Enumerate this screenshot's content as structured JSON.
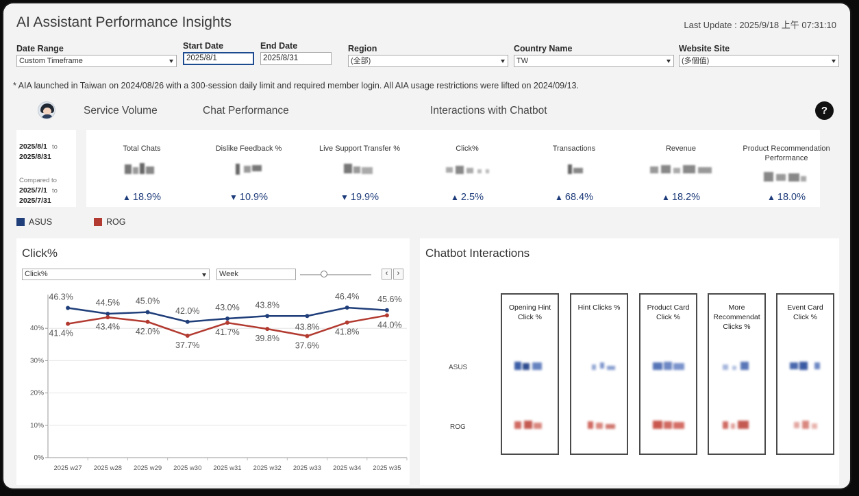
{
  "header": {
    "title": "AI Assistant Performance Insights",
    "last_update": "Last Update : 2025/9/18 上午 07:31:10"
  },
  "filters": {
    "date_range": {
      "label": "Date Range",
      "value": "Custom Timeframe"
    },
    "start_date": {
      "label": "Start Date",
      "value": "2025/8/1"
    },
    "end_date": {
      "label": "End Date",
      "value": "2025/8/31"
    },
    "region": {
      "label": "Region",
      "value": "(全部)"
    },
    "country": {
      "label": "Country Name",
      "value": "TW"
    },
    "website": {
      "label": "Website Site",
      "value": "(多個值)"
    }
  },
  "note": "* AIA launched in Taiwan on 2024/08/26 with a 300-session daily limit and required member login. All AIA usage restrictions were lifted on 2024/09/13.",
  "sections": {
    "service_volume": "Service Volume",
    "chat_performance": "Chat Performance",
    "interactions": "Interactions with Chatbot",
    "help": "?"
  },
  "period": {
    "current_start": "2025/8/1",
    "to1": "to",
    "current_end": "2025/8/31",
    "compared": "Compared to",
    "prev_start": "2025/7/1",
    "to2": "to",
    "prev_end": "2025/7/31"
  },
  "kpis": [
    {
      "name": "Total Chats",
      "arrow": "▲",
      "value": "18.9%"
    },
    {
      "name": "Dislike Feedback %",
      "arrow": "▼",
      "value": "10.9%"
    },
    {
      "name": "Live Support Transfer %",
      "arrow": "▼",
      "value": "19.9%"
    },
    {
      "name": "Click%",
      "arrow": "▲",
      "value": "2.5%"
    },
    {
      "name": "Transactions",
      "arrow": "▲",
      "value": "68.4%"
    },
    {
      "name": "Revenue",
      "arrow": "▲",
      "value": "18.2%"
    },
    {
      "name": "Product Recommendation Performance",
      "arrow": "▲",
      "value": "18.0%"
    }
  ],
  "legend": {
    "asus": {
      "label": "ASUS",
      "color": "#1f3e7a"
    },
    "rog": {
      "label": "ROG",
      "color": "#b23a30"
    }
  },
  "click_panel": {
    "title": "Click%",
    "metric_select": "Click%",
    "granularity": "Week",
    "prev": "‹",
    "next": "›"
  },
  "chart_data": {
    "type": "line",
    "categories": [
      "2025 w27",
      "2025 w28",
      "2025 w29",
      "2025 w30",
      "2025 w31",
      "2025 w32",
      "2025 w33",
      "2025 w34",
      "2025 w35"
    ],
    "series": [
      {
        "name": "ASUS",
        "color": "#1f3e7a",
        "values": [
          46.3,
          44.5,
          45.0,
          42.0,
          43.0,
          43.8,
          43.8,
          46.4,
          45.6
        ],
        "labels": [
          "46.3%",
          "44.5%",
          "45.0%",
          "42.0%",
          "43.0%",
          "43.8%",
          "",
          "46.4%",
          "45.6%"
        ]
      },
      {
        "name": "ROG",
        "color": "#b23a30",
        "values": [
          41.4,
          43.4,
          42.0,
          37.7,
          41.7,
          39.8,
          37.6,
          41.8,
          44.0
        ],
        "labels": [
          "41.4%",
          "43.4%",
          "42.0%",
          "37.7%",
          "41.7%",
          "39.8%",
          "37.6%",
          "41.8%",
          "44.0%"
        ]
      }
    ],
    "extra_labels": [
      "43.8%"
    ],
    "y_ticks": [
      "0%",
      "10%",
      "20%",
      "30%",
      "40%"
    ],
    "ylim": [
      0,
      50
    ],
    "grid": true
  },
  "interactions_panel": {
    "title": "Chatbot Interactions",
    "columns": [
      "Opening Hint Click %",
      "Hint Clicks %",
      "Product Card Click %",
      "More Recommendat Clicks %",
      "Event Card Click %"
    ],
    "rows": [
      "ASUS",
      "ROG"
    ]
  }
}
